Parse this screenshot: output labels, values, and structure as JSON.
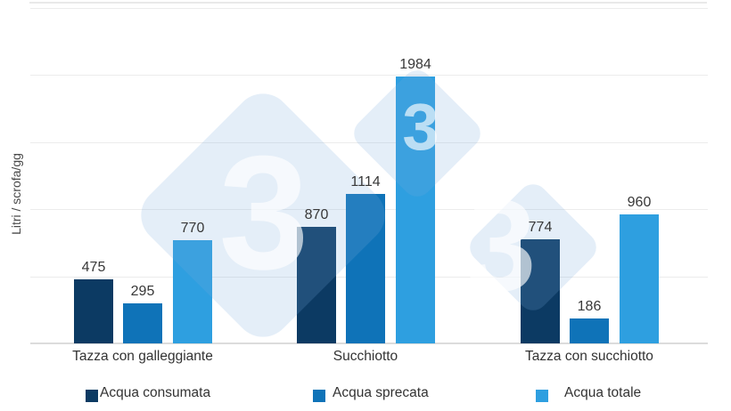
{
  "colors": {
    "series_dark": "#0c3a63",
    "series_medium": "#0f73b8",
    "series_light": "#2e9fe0",
    "gridline": "#ececec",
    "axis_line": "#dcdcdc",
    "watermark_fill": "rgba(121,168,221,0.20)",
    "watermark_glyph": "rgba(255,255,255,0.65)"
  },
  "y_axis": {
    "label": "Litri / scrofa/gg"
  },
  "watermark": {
    "glyph": "3"
  },
  "chart_data": {
    "type": "bar",
    "title": "",
    "xlabel": "",
    "ylabel": "Litri / scrofa/gg",
    "ylim": [
      0,
      2500
    ],
    "gridline_step": 500,
    "grid": true,
    "legend_position": "bottom",
    "categories": [
      "Tazza con galleggiante",
      "Succhiotto",
      "Tazza con succhiotto"
    ],
    "series": [
      {
        "name": "Acqua consumata",
        "color": "#0c3a63",
        "values": [
          475,
          870,
          774
        ]
      },
      {
        "name": "Acqua sprecata",
        "color": "#0f73b8",
        "values": [
          295,
          1114,
          186
        ]
      },
      {
        "name": "Acqua totale",
        "color": "#2e9fe0",
        "values": [
          770,
          1984,
          960
        ]
      }
    ],
    "data_labels": true
  }
}
